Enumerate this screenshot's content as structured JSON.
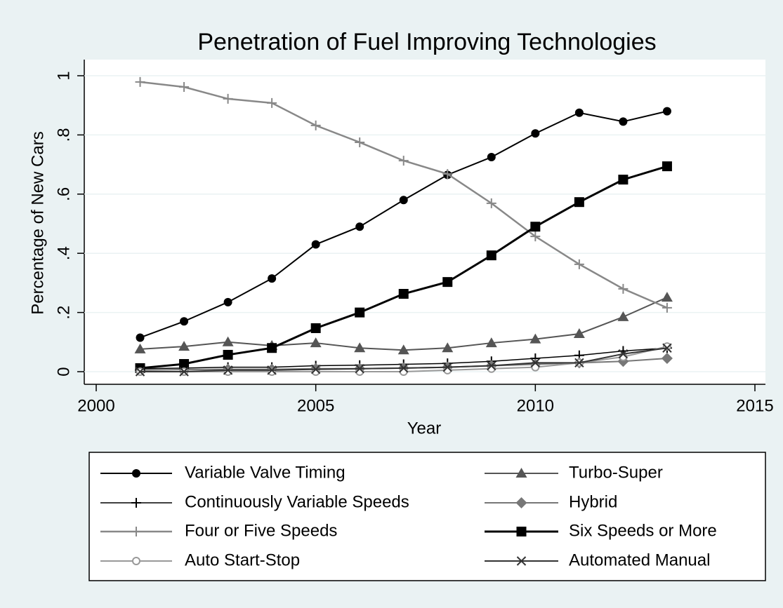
{
  "chart_data": {
    "type": "line",
    "title": "Penetration of Fuel Improving Technologies",
    "x_label": "Year",
    "y_label": "Percentage of New Cars",
    "x": [
      2001,
      2002,
      2003,
      2004,
      2005,
      2006,
      2007,
      2008,
      2009,
      2010,
      2011,
      2012,
      2013
    ],
    "xlim": [
      2000,
      2015
    ],
    "xticks": [
      2000,
      2005,
      2010,
      2015
    ],
    "ylim": [
      0,
      1
    ],
    "yticks": [
      0,
      {
        "value": 0.2,
        "label": ".2"
      },
      {
        "value": 0.4,
        "label": ".4"
      },
      {
        "value": 0.6,
        "label": ".6"
      },
      {
        "value": 0.8,
        "label": ".8"
      },
      1
    ],
    "grid": true,
    "series": [
      {
        "name": "Variable Valve Timing",
        "color": "#000000",
        "marker": "circle",
        "line_width": 2,
        "values": [
          0.115,
          0.17,
          0.235,
          0.315,
          0.43,
          0.49,
          0.58,
          0.665,
          0.725,
          0.805,
          0.875,
          0.845,
          0.88
        ]
      },
      {
        "name": "Turbo-Super",
        "color": "#555555",
        "marker": "triangle",
        "line_width": 2,
        "values": [
          0.076,
          0.085,
          0.1,
          0.088,
          0.097,
          0.08,
          0.073,
          0.08,
          0.097,
          0.11,
          0.128,
          0.185,
          0.251
        ]
      },
      {
        "name": "Continuously Variable Speeds",
        "color": "#000000",
        "marker": "plus",
        "line_width": 1.5,
        "values": [
          0.01,
          0.012,
          0.015,
          0.015,
          0.02,
          0.022,
          0.025,
          0.028,
          0.035,
          0.045,
          0.055,
          0.07,
          0.08
        ]
      },
      {
        "name": "Hybrid",
        "color": "#777777",
        "marker": "diamond",
        "line_width": 2,
        "values": [
          0.005,
          0.007,
          0.008,
          0.008,
          0.01,
          0.01,
          0.012,
          0.015,
          0.02,
          0.025,
          0.03,
          0.035,
          0.045
        ]
      },
      {
        "name": "Four or Five Speeds",
        "color": "#888888",
        "marker": "plus",
        "line_width": 2.5,
        "values": [
          0.979,
          0.962,
          0.922,
          0.908,
          0.832,
          0.775,
          0.713,
          0.668,
          0.569,
          0.457,
          0.363,
          0.28,
          0.216
        ]
      },
      {
        "name": "Six Speeds or More",
        "color": "#000000",
        "marker": "square",
        "line_width": 3,
        "values": [
          0.012,
          0.026,
          0.057,
          0.08,
          0.147,
          0.2,
          0.263,
          0.303,
          0.393,
          0.49,
          0.573,
          0.649,
          0.694
        ]
      },
      {
        "name": "Auto Start-Stop",
        "color": "#999999",
        "marker": "hollow-circle",
        "line_width": 2,
        "values": [
          0,
          0,
          0,
          0,
          0,
          0,
          0,
          0.005,
          0.01,
          0.015,
          0.03,
          0.05,
          0.085
        ]
      },
      {
        "name": "Automated Manual",
        "color": "#333333",
        "marker": "x",
        "line_width": 2,
        "values": [
          0,
          0,
          0.005,
          0.005,
          0.008,
          0.01,
          0.012,
          0.015,
          0.02,
          0.03,
          0.03,
          0.06,
          0.08
        ]
      }
    ]
  }
}
